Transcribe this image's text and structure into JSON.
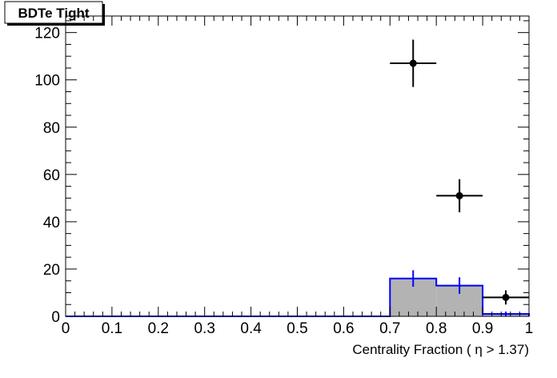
{
  "chart_data": {
    "type": "bar",
    "title": "BDTe Tight",
    "xlabel": "Centrality Fraction (  η > 1.37)",
    "ylabel": "",
    "xlim": [
      0,
      1
    ],
    "ylim": [
      0,
      127
    ],
    "x_ticks": [
      "0",
      "0.1",
      "0.2",
      "0.3",
      "0.4",
      "0.5",
      "0.6",
      "0.7",
      "0.8",
      "0.9",
      "1"
    ],
    "y_ticks": [
      "0",
      "20",
      "40",
      "60",
      "80",
      "100",
      "120"
    ],
    "bin_edges": [
      0,
      0.7,
      0.8,
      0.9,
      1.0
    ],
    "series": [
      {
        "style": "filled histogram",
        "fill": "#b3b3b3",
        "line": "#0000ff",
        "values": [
          0,
          16,
          13,
          1
        ],
        "errors": [
          0,
          3.5,
          3.5,
          1
        ]
      },
      {
        "style": "points with error bars",
        "color": "#000000",
        "points": [
          {
            "x": 0.75,
            "y": 107,
            "xerr": 0.05,
            "yerr": 10
          },
          {
            "x": 0.85,
            "y": 51,
            "xerr": 0.05,
            "yerr": 7
          },
          {
            "x": 0.95,
            "y": 8,
            "xerr": 0.05,
            "yerr": 3
          }
        ]
      }
    ],
    "grid": false,
    "legend": "none"
  }
}
